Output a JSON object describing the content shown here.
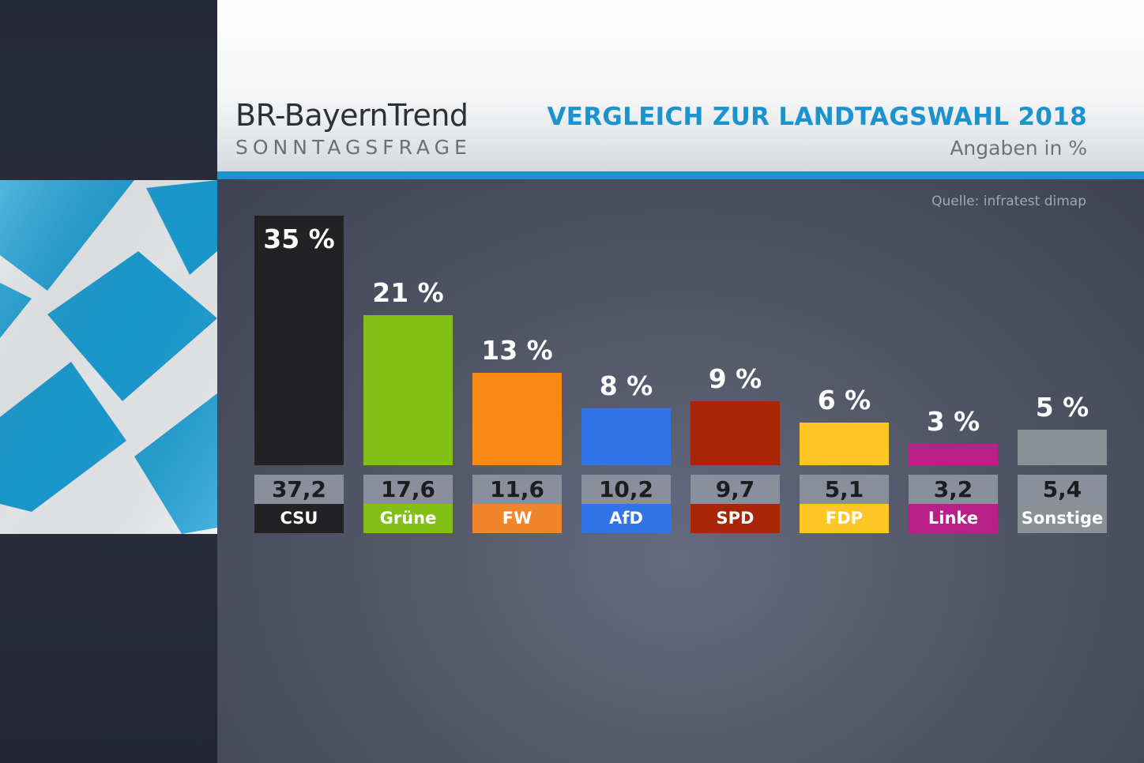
{
  "header": {
    "brand_title": "BR-BayernTrend",
    "brand_subtitle": "SONNTAGSFRAGE",
    "headline": "VERGLEICH ZUR LANDTAGSWAHL 2018",
    "unit_note": "Angaben in %",
    "source": "Quelle: infratest dimap"
  },
  "colors": {
    "accent": "#1c93cf",
    "prev_box": "#8b8e9b"
  },
  "chart_data": {
    "type": "bar",
    "categories": [
      "CSU",
      "Grüne",
      "FW",
      "AfD",
      "SPD",
      "FDP",
      "Linke",
      "Sonstige"
    ],
    "series": [
      {
        "values": [
          35,
          21,
          13,
          8,
          9,
          6,
          3,
          5
        ],
        "labels": [
          "35 %",
          "21 %",
          "13 %",
          "8 %",
          "9 %",
          "6 %",
          "3 %",
          "5 %"
        ]
      }
    ],
    "previous_values": [
      "37,2",
      "17,6",
      "11,6",
      "10,2",
      "9,7",
      "5,1",
      "3,2",
      "5,4"
    ],
    "colors": [
      "#222224",
      "#82c016",
      "#f88a15",
      "#2f74e8",
      "#a82505",
      "#ffc726",
      "#b62088",
      "#8a9095"
    ],
    "label_colors": [
      "#222224",
      "#82c016",
      "#f0852c",
      "#2f74e8",
      "#a82505",
      "#ffc726",
      "#b62088",
      "#8a9095"
    ],
    "ylim": [
      0,
      35
    ],
    "grid": false,
    "legend": "none"
  }
}
